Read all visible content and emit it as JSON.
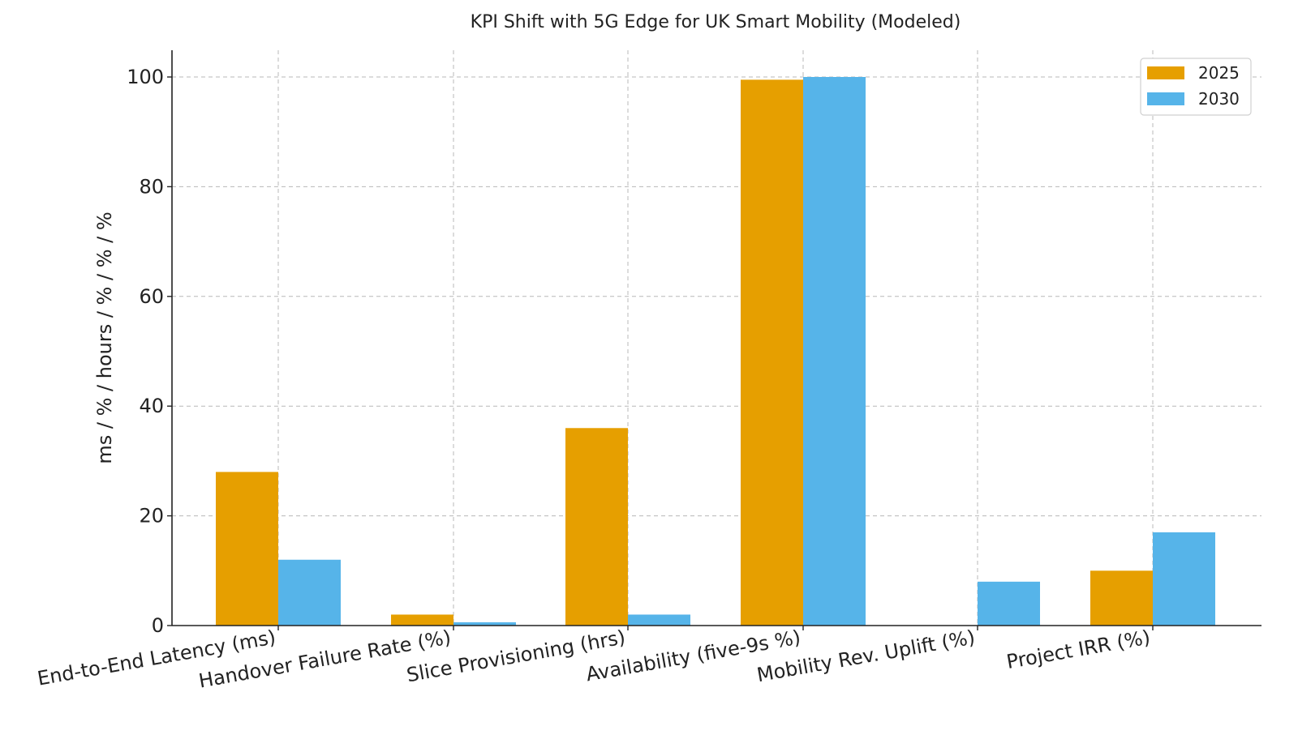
{
  "chart_data": {
    "type": "bar",
    "title": "KPI Shift with 5G Edge for UK Smart Mobility (Modeled)",
    "xlabel": "",
    "ylabel": "ms / % / hours / % / % / %",
    "ylim": [
      0,
      105
    ],
    "yticks": [
      0,
      20,
      40,
      60,
      80,
      100
    ],
    "grid": true,
    "legend_position": "top-right",
    "categories": [
      "End-to-End Latency (ms)",
      "Handover Failure Rate (%)",
      "Slice Provisioning (hrs)",
      "Availability (five-9s %)",
      "Mobility Rev. Uplift (%)",
      "Project IRR (%)"
    ],
    "series": [
      {
        "name": "2025",
        "color": "#E69F00",
        "values": [
          28,
          2,
          36,
          99.5,
          0,
          10
        ]
      },
      {
        "name": "2030",
        "color": "#56B4E9",
        "values": [
          12,
          0.6,
          2,
          99.999,
          8,
          17
        ]
      }
    ]
  }
}
